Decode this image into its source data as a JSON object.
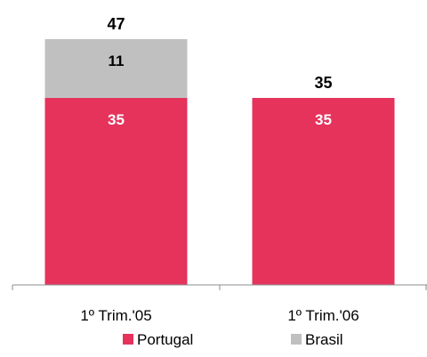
{
  "chart_data": {
    "type": "bar",
    "stacked": true,
    "categories": [
      "1º Trim.'05",
      "1º Trim.'06"
    ],
    "series": [
      {
        "name": "Portugal",
        "values": [
          35,
          35
        ],
        "color": "#e5335c",
        "label_color": "#ffffff"
      },
      {
        "name": "Brasil",
        "values": [
          11,
          0
        ],
        "color": "#c0c0c0",
        "label_color": "#000000"
      }
    ],
    "totals": [
      47,
      35
    ],
    "ylim": [
      0,
      50
    ],
    "grid": false,
    "legend_position": "bottom",
    "title": "",
    "xlabel": "",
    "ylabel": ""
  }
}
